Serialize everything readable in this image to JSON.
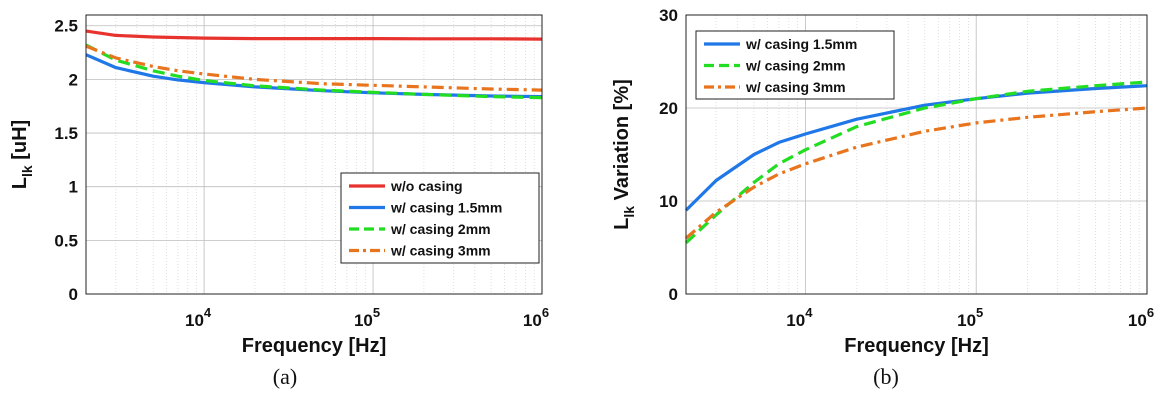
{
  "chart_data": [
    {
      "id": "a",
      "type": "line",
      "caption": "(a)",
      "xlabel": "Frequency [Hz]",
      "ylabel_main": "L",
      "ylabel_sub": "lk",
      "ylabel_rest": " [uH]",
      "xscale": "log",
      "xlim": [
        2000,
        1000000
      ],
      "ylim": [
        0,
        2.6
      ],
      "xticks": [
        10000,
        100000,
        1000000
      ],
      "xtick_base": "10",
      "xtick_exps": [
        "4",
        "5",
        "6"
      ],
      "yticks": [
        "0",
        "0.5",
        "1",
        "1.5",
        "2",
        "2.5"
      ],
      "ytick_values": [
        0,
        0.5,
        1,
        1.5,
        2,
        2.5
      ],
      "grid": true,
      "legend_position": "bottom-right",
      "series": [
        {
          "name": "w/o casing",
          "color": "#e8322d",
          "dash": "solid",
          "x": [
            2000,
            3000,
            5000,
            10000,
            20000,
            50000,
            100000,
            200000,
            500000,
            1000000
          ],
          "y": [
            2.45,
            2.41,
            2.395,
            2.385,
            2.38,
            2.38,
            2.38,
            2.378,
            2.378,
            2.375
          ]
        },
        {
          "name": "w/ casing 1.5mm",
          "color": "#1f77e8",
          "dash": "solid",
          "x": [
            2000,
            3000,
            5000,
            7000,
            10000,
            20000,
            50000,
            100000,
            200000,
            500000,
            1000000
          ],
          "y": [
            2.23,
            2.11,
            2.03,
            1.995,
            1.97,
            1.93,
            1.895,
            1.875,
            1.86,
            1.845,
            1.84
          ]
        },
        {
          "name": "w/ casing 2mm",
          "color": "#22dd22",
          "dash": "dashed",
          "x": [
            2000,
            3000,
            5000,
            7000,
            10000,
            20000,
            50000,
            100000,
            200000,
            500000,
            1000000
          ],
          "y": [
            2.32,
            2.18,
            2.08,
            2.03,
            1.99,
            1.94,
            1.9,
            1.88,
            1.86,
            1.84,
            1.83
          ]
        },
        {
          "name": "w/ casing 3mm",
          "color": "#e8741e",
          "dash": "dashdot",
          "x": [
            2000,
            3000,
            5000,
            7000,
            10000,
            20000,
            50000,
            100000,
            200000,
            500000,
            1000000
          ],
          "y": [
            2.31,
            2.2,
            2.12,
            2.08,
            2.05,
            2.0,
            1.96,
            1.945,
            1.93,
            1.91,
            1.9
          ]
        }
      ]
    },
    {
      "id": "b",
      "type": "line",
      "caption": "(b)",
      "xlabel": "Frequency [Hz]",
      "ylabel_main": "L",
      "ylabel_sub": "lk",
      "ylabel_rest": " Variation [%]",
      "xscale": "log",
      "xlim": [
        2000,
        1000000
      ],
      "ylim": [
        0,
        30
      ],
      "xticks": [
        10000,
        100000,
        1000000
      ],
      "xtick_base": "10",
      "xtick_exps": [
        "4",
        "5",
        "6"
      ],
      "yticks": [
        "0",
        "10",
        "20",
        "30"
      ],
      "ytick_values": [
        0,
        10,
        20,
        30
      ],
      "grid": true,
      "legend_position": "top-left",
      "series": [
        {
          "name": "w/ casing 1.5mm",
          "color": "#1f77e8",
          "dash": "solid",
          "x": [
            2000,
            3000,
            5000,
            7000,
            10000,
            20000,
            50000,
            100000,
            200000,
            500000,
            1000000
          ],
          "y": [
            9,
            12.2,
            15,
            16.3,
            17.2,
            18.8,
            20.3,
            21.0,
            21.6,
            22.1,
            22.4
          ]
        },
        {
          "name": "w/ casing 2mm",
          "color": "#22dd22",
          "dash": "dashed",
          "x": [
            2000,
            3000,
            5000,
            7000,
            10000,
            20000,
            50000,
            100000,
            200000,
            500000,
            1000000
          ],
          "y": [
            5.5,
            8.5,
            12.0,
            14.0,
            15.5,
            18.0,
            20.0,
            21.0,
            21.8,
            22.4,
            22.8
          ]
        },
        {
          "name": "w/ casing 3mm",
          "color": "#e8741e",
          "dash": "dashdot",
          "x": [
            2000,
            3000,
            5000,
            7000,
            10000,
            20000,
            50000,
            100000,
            200000,
            500000,
            1000000
          ],
          "y": [
            6,
            8.8,
            11.5,
            12.9,
            14.0,
            15.8,
            17.5,
            18.4,
            19.0,
            19.6,
            20.0
          ]
        }
      ]
    }
  ]
}
